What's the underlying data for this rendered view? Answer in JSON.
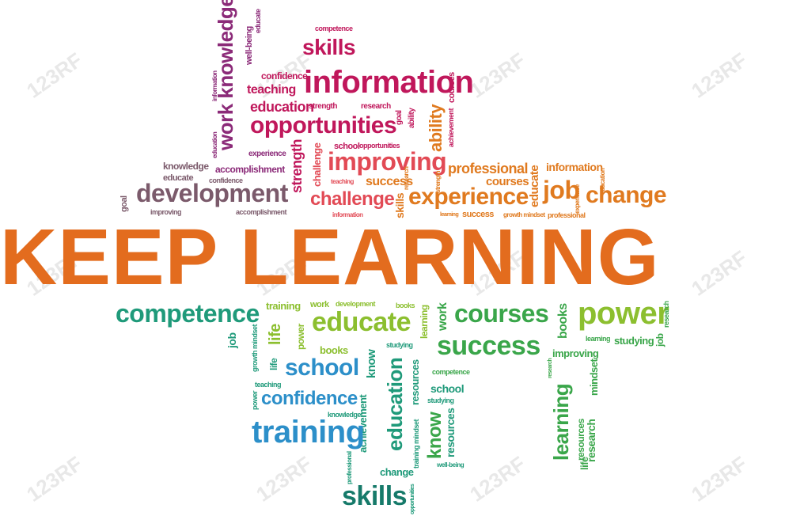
{
  "headline": "KEEP LEARNING",
  "watermark": "123RF",
  "colors": {
    "headline": "#e36c1e",
    "top_palette": [
      "#c0175b",
      "#8b2a78",
      "#e24a55",
      "#e07a1f",
      "#7b5a6b"
    ],
    "bottom_palette": [
      "#1f9a7a",
      "#8cbf2f",
      "#2c8fc9",
      "#3aa64a",
      "#167a6a"
    ]
  },
  "top_words": {
    "skills": "skills",
    "information": "information",
    "opportunities": "opportunities",
    "improving": "improving",
    "development": "development",
    "challenge": "challenge",
    "experience": "experience",
    "job": "job",
    "change": "change",
    "professional": "professional",
    "courses": "courses",
    "educate": "educate",
    "information2": "information",
    "teaching": "teaching",
    "education": "education",
    "confidence": "confidence",
    "competence": "competence",
    "strength": "strength",
    "research": "research",
    "goal": "goal",
    "ability": "ability",
    "knowledge_v": "work knowledge",
    "wellbeing": "well-being",
    "educate_v": "educate",
    "information_v": "information",
    "education_v": "education",
    "experience_sm": "experience",
    "accomplishment": "accomplishment",
    "knowledge": "knowledge",
    "educate_sm": "educate",
    "confidence_sm": "confidence",
    "goal_v": "goal",
    "improving_sm": "improving",
    "accomplishment_sm": "accomplishment",
    "strength_v": "strength",
    "challenge_v": "challenge",
    "school": "school",
    "opportunities_sm": "opportunities",
    "teaching_sm": "teaching",
    "success": "success",
    "information_sm": "information",
    "skills_v": "skills",
    "success_sm": "success",
    "growth_mindset": "growth mindset",
    "professional_sm": "professional",
    "learning_sm": "learning",
    "ability_v": "ability",
    "achievement_v": "achievement",
    "courses_v": "courses",
    "research_v": "research",
    "strength_v2": "strength",
    "educate_v2": "educate",
    "experience_v": "experience",
    "education_v2": "education"
  },
  "bottom_words": {
    "competence": "competence",
    "training_sm": "training",
    "work_sm": "work",
    "development_sm": "development",
    "books_sm": "books",
    "educate": "educate",
    "courses": "courses",
    "power": "power",
    "success": "success",
    "school": "school",
    "education_v": "education",
    "confidence": "confidence",
    "training": "training",
    "skills": "skills",
    "know_v": "know",
    "learning_v": "learning",
    "life_v": "life",
    "job_v": "job",
    "books_v": "books",
    "improving": "improving",
    "studying": "studying",
    "research_v": "research",
    "life2_v": "life",
    "growth_mindset_v": "growth mindset",
    "teaching_sm": "teaching",
    "power_v": "power",
    "books_sm2": "books",
    "knowledge_sm": "knowledge",
    "achievement_v": "achievement",
    "resources_v": "resources",
    "competence_sm": "competence",
    "school_sm": "school",
    "studying_sm": "studying",
    "mindset_v": "mindset",
    "resources_v2": "resources",
    "research_v2": "research",
    "change_sm": "change",
    "wellbeing_sm": "well-being",
    "professional_v": "professional",
    "opportunities_v": "opportunities",
    "training_mindset_v": "training mindset",
    "learning_sm": "learning",
    "studying_sm2": "studying",
    "job_v2": "job",
    "research_sm": "research",
    "work_v": "work",
    "know_v2": "know",
    "life_v3": "life",
    "power_sm": "power",
    "studying_v": "studying",
    "life_v4": "life",
    "resources_v3": "resources"
  }
}
